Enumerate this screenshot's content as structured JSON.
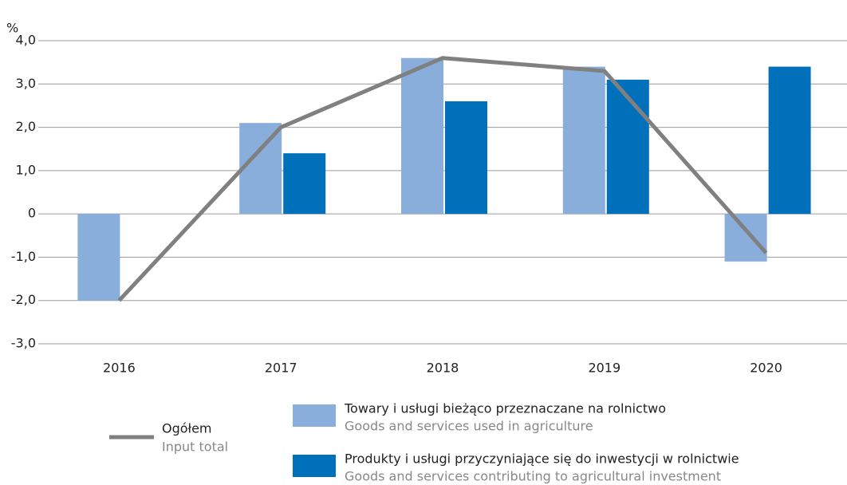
{
  "chart_data": {
    "type": "bar",
    "unit_label": "%",
    "categories": [
      "2016",
      "2017",
      "2018",
      "2019",
      "2020"
    ],
    "series": [
      {
        "name": "Towary i usługi bieżąco przeznaczane na rolnictwo",
        "name_en": "Goods and services used in agriculture",
        "color": "#8aaedc",
        "type": "bar",
        "values": [
          -2.0,
          2.1,
          3.6,
          3.4,
          -1.1
        ]
      },
      {
        "name": "Produkty i usługi przyczyniające się do inwestycji w rolnictwie",
        "name_en": "Goods and services contributing to agricultural investment",
        "color": "#0070bb",
        "type": "bar",
        "values": [
          null,
          1.4,
          2.6,
          3.1,
          3.4
        ]
      },
      {
        "name": "Ogółem",
        "name_en": "Input total",
        "color": "#808080",
        "type": "line",
        "values": [
          -2.0,
          2.0,
          3.6,
          3.3,
          -0.9
        ]
      }
    ],
    "ylim": [
      -3,
      4
    ],
    "yticks": [
      {
        "value": 4,
        "label": "4,0"
      },
      {
        "value": 3,
        "label": "3,0"
      },
      {
        "value": 2,
        "label": "2,0"
      },
      {
        "value": 1,
        "label": "1,0"
      },
      0,
      {
        "value": -1,
        "label": "-1,0"
      },
      {
        "value": -2,
        "label": "-2,0"
      },
      {
        "value": -3,
        "label": "-3,0"
      }
    ],
    "grid": true
  }
}
